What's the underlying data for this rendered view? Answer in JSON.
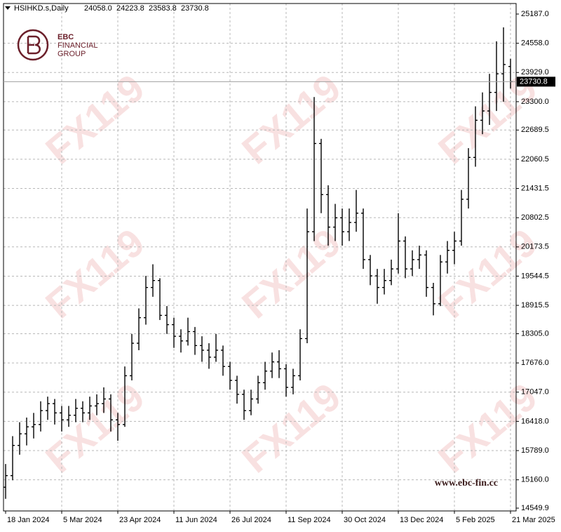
{
  "chart_data": {
    "type": "ohlc",
    "symbol": "HSIHKD.s,Daily",
    "header_values": [
      {
        "value": 24058.0,
        "label": "24058.0"
      },
      {
        "value": 24223.8,
        "label": "24223.8"
      },
      {
        "value": 23583.8,
        "label": "23583.8"
      },
      {
        "value": 23730.8,
        "label": "23730.8"
      }
    ],
    "current_price": {
      "value": 23730.8,
      "label": "23730.8"
    },
    "brand": {
      "name": "EBC",
      "line1": "FINANCIAL",
      "line2": "GROUP",
      "website": "www.ebc-fin.cc"
    },
    "watermark": "FX119",
    "color": "#000000",
    "grid": true,
    "xlim": [
      -0.3,
      72.8
    ],
    "xticks": [
      {
        "value": 0,
        "label": "18 Jan 2024"
      },
      {
        "value": 8,
        "label": "5 Mar 2024"
      },
      {
        "value": 16,
        "label": "23 Apr 2024"
      },
      {
        "value": 24,
        "label": "11 Jun 2024"
      },
      {
        "value": 32,
        "label": "26 Jul 2024"
      },
      {
        "value": 40,
        "label": "11 Sep 2024"
      },
      {
        "value": 48,
        "label": "30 Oct 2024"
      },
      {
        "value": 56,
        "label": "13 Dec 2024"
      },
      {
        "value": 64,
        "label": "5 Feb 2025"
      },
      {
        "value": 72,
        "label": "21 Mar 2025"
      }
    ],
    "ylim": [
      14489.5,
      25413.6
    ],
    "yticks": [
      {
        "value": 25187.0,
        "label": "25187.0"
      },
      {
        "value": 24558.0,
        "label": "24558.0"
      },
      {
        "value": 23929.0,
        "label": "23929.0"
      },
      {
        "value": 23300.0,
        "label": "23300.0"
      },
      {
        "value": 22689.5,
        "label": "22689.5"
      },
      {
        "value": 22060.5,
        "label": "22060.5"
      },
      {
        "value": 21431.5,
        "label": "21431.5"
      },
      {
        "value": 20802.5,
        "label": "20802.5"
      },
      {
        "value": 20173.5,
        "label": "20173.5"
      },
      {
        "value": 19544.5,
        "label": "19544.5"
      },
      {
        "value": 18915.5,
        "label": "18915.5"
      },
      {
        "value": 18305.0,
        "label": "18305.0"
      },
      {
        "value": 17676.0,
        "label": "17676.0"
      },
      {
        "value": 17047.0,
        "label": "17047.0"
      },
      {
        "value": 16418.0,
        "label": "16418.0"
      },
      {
        "value": 15789.0,
        "label": "15789.0"
      },
      {
        "value": 15160.0,
        "label": "15160.0"
      },
      {
        "value": 14549.9,
        "label": "14549.9"
      }
    ],
    "open": [
      15000,
      15250,
      15900,
      16150,
      16300,
      16350,
      16650,
      16800,
      16600,
      16450,
      16550,
      16700,
      16600,
      16750,
      16800,
      16900,
      16450,
      16350,
      17400,
      18100,
      18650,
      19300,
      19450,
      18700,
      18500,
      18250,
      18150,
      18350,
      18050,
      17950,
      17800,
      17950,
      17600,
      17300,
      17000,
      16650,
      16900,
      17250,
      17500,
      17700,
      17550,
      17150,
      17400,
      18200,
      20500,
      22400,
      21300,
      20600,
      20800,
      20500,
      20700,
      20900,
      19900,
      19550,
      19300,
      19450,
      19700,
      20300,
      19700,
      19900,
      20000,
      19300,
      18950,
      19850,
      20100,
      20300,
      21200,
      22100,
      22900,
      23100,
      23500,
      23900,
      24058.0
    ],
    "high": [
      15500,
      16100,
      16400,
      16500,
      16600,
      16850,
      16950,
      16900,
      16750,
      16750,
      16900,
      16850,
      16950,
      17000,
      17150,
      17000,
      16600,
      17600,
      18300,
      18850,
      19550,
      19800,
      19500,
      18900,
      18650,
      18400,
      18650,
      18450,
      18250,
      18100,
      18300,
      18050,
      17700,
      17400,
      17100,
      17100,
      17400,
      17700,
      17900,
      17950,
      17650,
      17550,
      18400,
      21000,
      23400,
      22500,
      21500,
      21100,
      21000,
      21000,
      21400,
      21000,
      20000,
      19700,
      19700,
      19900,
      20900,
      20400,
      20100,
      20200,
      20100,
      19400,
      20000,
      20300,
      20500,
      21400,
      22300,
      23200,
      23500,
      23900,
      24600,
      24900,
      24223.8
    ],
    "low": [
      14750,
      15150,
      15700,
      15900,
      16050,
      16200,
      16450,
      16350,
      16200,
      16300,
      16400,
      16400,
      16450,
      16550,
      16600,
      16200,
      16000,
      16300,
      17300,
      17950,
      18500,
      19100,
      18600,
      18300,
      18000,
      17900,
      18050,
      17850,
      17700,
      17550,
      17700,
      17400,
      17100,
      16800,
      16450,
      16550,
      16800,
      17100,
      17350,
      17350,
      16950,
      17000,
      17300,
      18100,
      20300,
      20900,
      20200,
      20300,
      20200,
      20300,
      20500,
      19700,
      19350,
      18950,
      19150,
      19350,
      19600,
      19500,
      19550,
      19700,
      19100,
      18700,
      18900,
      19600,
      19800,
      20200,
      21000,
      21900,
      22600,
      22800,
      23100,
      23300,
      23583.8
    ],
    "close": [
      15250,
      15900,
      16150,
      16300,
      16350,
      16650,
      16800,
      16600,
      16450,
      16550,
      16700,
      16600,
      16750,
      16800,
      16900,
      16450,
      16350,
      17400,
      18100,
      18650,
      19300,
      19450,
      18700,
      18500,
      18250,
      18150,
      18350,
      18050,
      17950,
      17800,
      17950,
      17600,
      17300,
      17000,
      16650,
      16900,
      17250,
      17500,
      17700,
      17550,
      17150,
      17400,
      18200,
      20500,
      22400,
      21300,
      20600,
      20800,
      20500,
      20700,
      20900,
      19900,
      19550,
      19300,
      19450,
      19700,
      20300,
      19700,
      19900,
      20000,
      19300,
      18950,
      19850,
      20100,
      20300,
      21200,
      22100,
      22900,
      23100,
      23500,
      23900,
      24100,
      23730.8
    ]
  }
}
